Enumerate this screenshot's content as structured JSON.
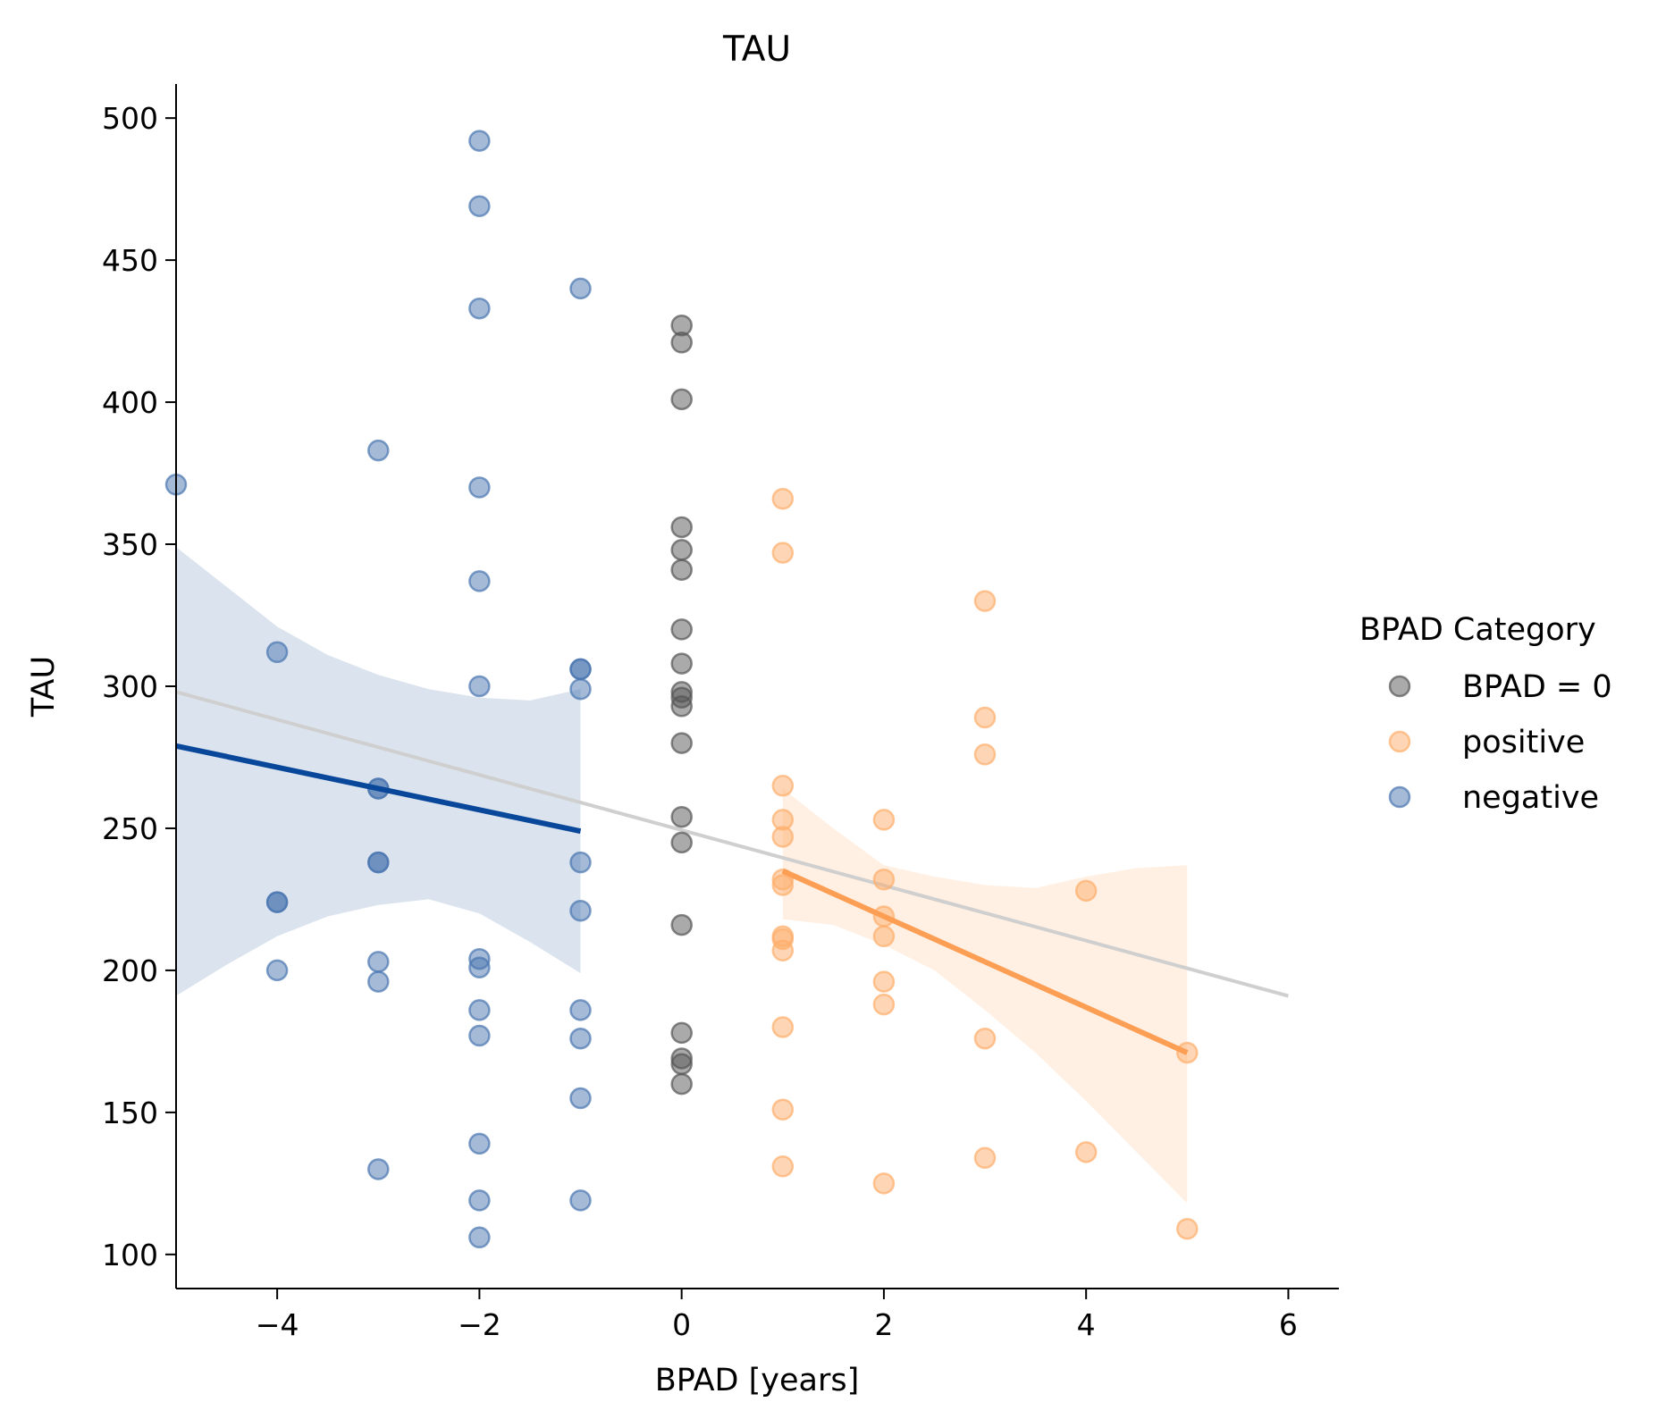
{
  "chart_data": {
    "type": "scatter",
    "title": "TAU",
    "xlabel": "BPAD [years]",
    "ylabel": "TAU",
    "xlim": [
      -5,
      6.5
    ],
    "ylim": [
      88,
      512
    ],
    "x_ticks": [
      -4,
      -2,
      0,
      2,
      4,
      6
    ],
    "x_tick_labels": [
      "−4",
      "−2",
      "0",
      "2",
      "4",
      "6"
    ],
    "y_ticks": [
      100,
      150,
      200,
      250,
      300,
      350,
      400,
      450,
      500
    ],
    "y_tick_labels": [
      "100",
      "150",
      "200",
      "250",
      "300",
      "350",
      "400",
      "450",
      "500"
    ],
    "grid": false,
    "legend": {
      "title": "BPAD Category",
      "placement": "outside-right",
      "entries": [
        "BPAD = 0",
        "positive",
        "negative"
      ]
    },
    "series": [
      {
        "name": "BPAD = 0",
        "color": "#555555",
        "points": [
          [
            0,
            427
          ],
          [
            0,
            421
          ],
          [
            0,
            401
          ],
          [
            0,
            356
          ],
          [
            0,
            348
          ],
          [
            0,
            341
          ],
          [
            0,
            320
          ],
          [
            0,
            308
          ],
          [
            0,
            298
          ],
          [
            0,
            296
          ],
          [
            0,
            293
          ],
          [
            0,
            280
          ],
          [
            0,
            254
          ],
          [
            0,
            245
          ],
          [
            0,
            216
          ],
          [
            0,
            178
          ],
          [
            0,
            169
          ],
          [
            0,
            167
          ],
          [
            0,
            160
          ]
        ]
      },
      {
        "name": "positive",
        "color": "#fdae6b",
        "points": [
          [
            1,
            366
          ],
          [
            1,
            347
          ],
          [
            1,
            265
          ],
          [
            1,
            253
          ],
          [
            1,
            247
          ],
          [
            1,
            232
          ],
          [
            1,
            230
          ],
          [
            1,
            212
          ],
          [
            1,
            211
          ],
          [
            1,
            207
          ],
          [
            1,
            180
          ],
          [
            1,
            151
          ],
          [
            1,
            131
          ],
          [
            2,
            253
          ],
          [
            2,
            232
          ],
          [
            2,
            219
          ],
          [
            2,
            212
          ],
          [
            2,
            196
          ],
          [
            2,
            188
          ],
          [
            2,
            125
          ],
          [
            3,
            330
          ],
          [
            3,
            289
          ],
          [
            3,
            276
          ],
          [
            3,
            176
          ],
          [
            3,
            134
          ],
          [
            4,
            228
          ],
          [
            4,
            136
          ],
          [
            5,
            171
          ],
          [
            5,
            109
          ]
        ],
        "fit": {
          "x": [
            1,
            5
          ],
          "y": [
            235,
            171
          ]
        },
        "ci_band": {
          "x": [
            1,
            1.5,
            2,
            2.5,
            3,
            3.5,
            4,
            4.5,
            5
          ],
          "lower": [
            218,
            216,
            209,
            200,
            186,
            171,
            154,
            136,
            118
          ],
          "upper": [
            264,
            250,
            237,
            233,
            230,
            229,
            233,
            236,
            237
          ]
        }
      },
      {
        "name": "negative",
        "color": "#4a76b0",
        "points": [
          [
            -5,
            371
          ],
          [
            -4,
            312
          ],
          [
            -4,
            224
          ],
          [
            -4,
            224
          ],
          [
            -4,
            200
          ],
          [
            -3,
            383
          ],
          [
            -3,
            264
          ],
          [
            -3,
            264
          ],
          [
            -3,
            238
          ],
          [
            -3,
            238
          ],
          [
            -3,
            203
          ],
          [
            -3,
            196
          ],
          [
            -3,
            130
          ],
          [
            -2,
            492
          ],
          [
            -2,
            469
          ],
          [
            -2,
            433
          ],
          [
            -2,
            370
          ],
          [
            -2,
            337
          ],
          [
            -2,
            300
          ],
          [
            -2,
            204
          ],
          [
            -2,
            201
          ],
          [
            -2,
            186
          ],
          [
            -2,
            177
          ],
          [
            -2,
            139
          ],
          [
            -2,
            119
          ],
          [
            -2,
            106
          ],
          [
            -1,
            440
          ],
          [
            -1,
            306
          ],
          [
            -1,
            306
          ],
          [
            -1,
            299
          ],
          [
            -1,
            238
          ],
          [
            -1,
            221
          ],
          [
            -1,
            186
          ],
          [
            -1,
            176
          ],
          [
            -1,
            155
          ],
          [
            -1,
            119
          ]
        ],
        "fit": {
          "x": [
            -5,
            -1
          ],
          "y": [
            279,
            249
          ]
        },
        "ci_band": {
          "x": [
            -5,
            -4.5,
            -4,
            -3.5,
            -3,
            -2.5,
            -2,
            -1.5,
            -1
          ],
          "lower": [
            191,
            202,
            212,
            219,
            223,
            225,
            220,
            210,
            199
          ],
          "upper": [
            349,
            335,
            321,
            311,
            304,
            299,
            296,
            295,
            299
          ]
        }
      }
    ],
    "overall_fit": {
      "color": "#cfcfcf",
      "x": [
        -5,
        6
      ],
      "y": [
        298,
        191
      ]
    }
  }
}
